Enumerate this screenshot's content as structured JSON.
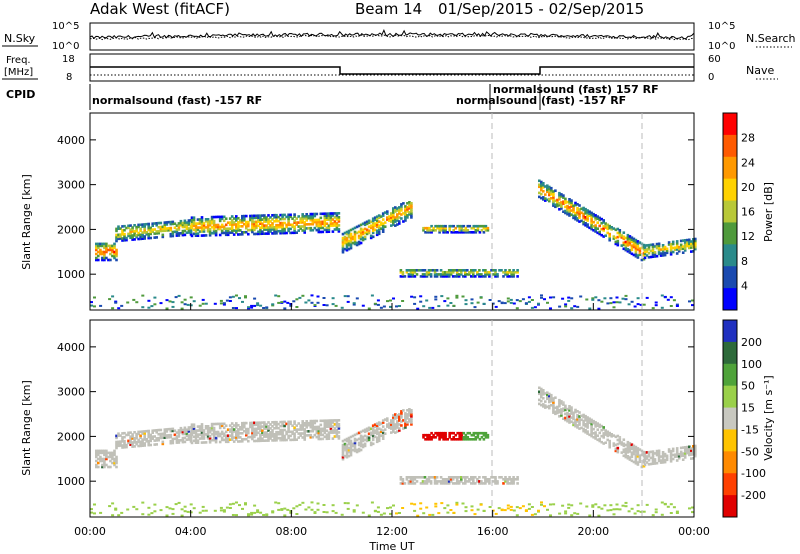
{
  "header": {
    "title": "Adak West (fitACF)",
    "beam": "Beam 14",
    "date_range": "01/Sep/2015 - 02/Sep/2015"
  },
  "top_panels": {
    "nsky_label": "N.Sky",
    "nsearch_label": "N.Search",
    "sky_ticks": [
      "10^5",
      "10^0"
    ],
    "search_ticks": [
      "10^5",
      "10^0"
    ],
    "freq_label": "Freq.",
    "freq_unit": "[MHz]",
    "freq_ticks": [
      "18",
      "8"
    ],
    "nave_label": "Nave",
    "nave_ticks": [
      "60",
      "0"
    ],
    "cpid_label": "CPID",
    "cpid_left": "normalsound (fast) -157 RF",
    "cpid_mid": "normalsound (fast) -157 RF",
    "cpid_mid_top": "normalsound (fast) 157 RF"
  },
  "chart_data": [
    {
      "type": "heatmap",
      "name": "power",
      "ylabel": "Slant Range [km]",
      "ylim": [
        200,
        4600
      ],
      "yticks": [
        "4000",
        "3000",
        "2000",
        "1000"
      ],
      "xlim_hours": [
        0,
        24
      ],
      "cbar_label": "Power [dB]",
      "cbar_ticks": [
        "28",
        "24",
        "20",
        "16",
        "12",
        "8",
        "4"
      ],
      "cbar_colors": [
        "#ff0000",
        "#ff5a00",
        "#ff9900",
        "#ffd200",
        "#b8c838",
        "#4f9a3c",
        "#2a8a8a",
        "#1a4ab0",
        "#0000ff"
      ],
      "bands": [
        {
          "start": 0.2,
          "end": 1.0,
          "r0": 1500,
          "r1": 1500,
          "w": 400,
          "hot": 0.8
        },
        {
          "start": 1.0,
          "end": 4.0,
          "r0": 1900,
          "r1": 2050,
          "w": 350,
          "hot": 0.3
        },
        {
          "start": 4.0,
          "end": 9.9,
          "r0": 2050,
          "r1": 2150,
          "w": 420,
          "hot": 0.6
        },
        {
          "start": 10.0,
          "end": 12.8,
          "r0": 1700,
          "r1": 2500,
          "w": 450,
          "hot": 0.5
        },
        {
          "start": 13.2,
          "end": 15.8,
          "r0": 2000,
          "r1": 2000,
          "w": 160,
          "hot": 0.4
        },
        {
          "start": 12.3,
          "end": 17.0,
          "r0": 1020,
          "r1": 1020,
          "w": 170,
          "hot": 0.2
        },
        {
          "start": 17.8,
          "end": 22.0,
          "r0": 2900,
          "r1": 1450,
          "w": 380,
          "hot": 0.7
        },
        {
          "start": 22.0,
          "end": 24.0,
          "r0": 1500,
          "r1": 1650,
          "w": 300,
          "hot": 0.3
        }
      ]
    },
    {
      "type": "heatmap",
      "name": "velocity",
      "ylabel": "Slant Range [km]",
      "ylim": [
        200,
        4600
      ],
      "yticks": [
        "4000",
        "3000",
        "2000",
        "1000"
      ],
      "xlim_hours": [
        0,
        24
      ],
      "xticks": [
        "00:00",
        "04:00",
        "08:00",
        "12:00",
        "16:00",
        "20:00",
        "00:00"
      ],
      "xlabel": "Time UT",
      "cbar_label": "Velocity [m s⁻¹]",
      "cbar_ticks": [
        "200",
        "100",
        "50",
        "15",
        "-15",
        "-50",
        "-100",
        "-200"
      ],
      "cbar_colors": [
        "#2030c0",
        "#2e6a3a",
        "#4fa33a",
        "#9ad04a",
        "#c8c8c0",
        "#ffc400",
        "#ff8a00",
        "#ff4000",
        "#e00000"
      ]
    }
  ],
  "colors": {
    "ground_scatter": "#c0c0b8",
    "dashed_marker": "#bbbbbb"
  }
}
